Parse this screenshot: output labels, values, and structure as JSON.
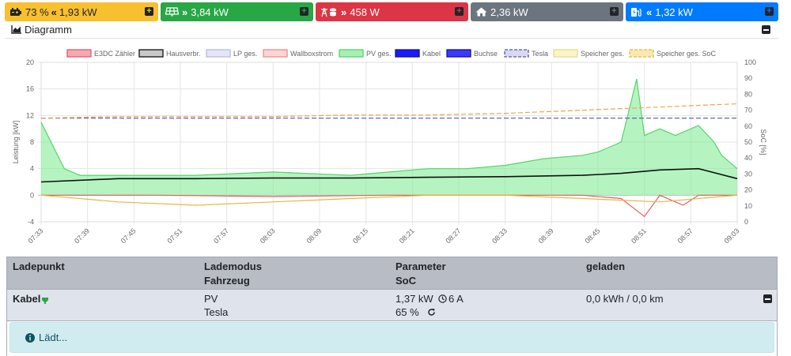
{
  "tiles": {
    "battery": {
      "soc": "73 %",
      "arrow": "«",
      "value": "1,93 kW",
      "icon": "battery-icon"
    },
    "pv": {
      "arrow": "»",
      "value": "3,84 kW",
      "icon": "solar-panel-icon"
    },
    "grid": {
      "arrow": "»",
      "value": "458 W",
      "icon": "grid-tower-icon"
    },
    "house": {
      "value": "2,36 kW",
      "icon": "home-icon"
    },
    "charge": {
      "arrow": "«",
      "value": "1,32 kW",
      "icon": "charging-station-icon"
    }
  },
  "diagram": {
    "title": "Diagramm"
  },
  "chart_data": {
    "type": "line",
    "legend": [
      "E3DC Zähler",
      "Hausverbr.",
      "LP ges.",
      "Wallboxstrom",
      "PV ges.",
      "Kabel",
      "Buchse",
      "Tesla",
      "Speicher ges.",
      "Speicher ges. SoC"
    ],
    "legend_colors": [
      "#f4a9b3",
      "#c8c8c8",
      "#e4e6f7",
      "#fbd6d6",
      "#a7f0b3",
      "#1a1aff",
      "#3b3bff",
      "#d8d8f0",
      "#fbf4c6",
      "#fbe8b0"
    ],
    "legend_borders": [
      "#e8596b",
      "#111111",
      "#b5b9ee",
      "#f28a8a",
      "#55d46b",
      "#111188",
      "#111199",
      "#5555bb",
      "#e6dc90",
      "#e8b640"
    ],
    "legend_dashed": [
      false,
      false,
      false,
      false,
      false,
      false,
      false,
      true,
      false,
      true
    ],
    "x_ticks": [
      "07:33",
      "07:39",
      "07:45",
      "07:51",
      "07:57",
      "08:03",
      "08:09",
      "08:15",
      "08:21",
      "08:27",
      "08:33",
      "08:39",
      "08:45",
      "08:51",
      "08:57",
      "09:03"
    ],
    "x_range": [
      "07:33",
      "09:03"
    ],
    "ylabel": "Leistung [kW]",
    "ylim": [
      -4,
      20
    ],
    "y_ticks": [
      -4,
      0,
      4,
      8,
      12,
      16,
      20
    ],
    "y2label": "SoC [%]",
    "y2lim": [
      0,
      100
    ],
    "y2_ticks": [
      0,
      10,
      20,
      30,
      40,
      50,
      60,
      70,
      80,
      90,
      100
    ],
    "series": [
      {
        "name": "PV ges.",
        "color": "#55d46b",
        "fill": "rgba(120,235,140,0.55)",
        "times": [
          0,
          3,
          5,
          10,
          20,
          30,
          40,
          45,
          50,
          55,
          60,
          65,
          70,
          72,
          75,
          77,
          78,
          80,
          82,
          85,
          87,
          88,
          90
        ],
        "values": [
          11,
          4,
          3,
          3,
          3,
          3.5,
          3,
          3.5,
          4,
          4,
          4.5,
          5.5,
          6,
          6.5,
          8,
          17.5,
          9,
          10,
          9,
          10.5,
          8,
          6,
          4
        ]
      },
      {
        "name": "Hausverbr.",
        "color": "#111111",
        "times": [
          0,
          10,
          20,
          30,
          40,
          50,
          60,
          70,
          75,
          80,
          85,
          90
        ],
        "values": [
          2,
          2.5,
          2.5,
          2.6,
          2.6,
          2.7,
          2.8,
          3,
          3.3,
          3.8,
          4,
          2.5
        ]
      },
      {
        "name": "E3DC Zähler",
        "color": "#e8596b",
        "times": [
          0,
          15,
          30,
          45,
          60,
          70,
          75,
          78,
          80,
          83,
          85,
          90
        ],
        "values": [
          0,
          0,
          -0.2,
          0,
          0,
          0,
          -0.5,
          -3.2,
          0,
          -1.5,
          0,
          0
        ]
      },
      {
        "name": "Speicher ges.",
        "color": "#e8b640",
        "times": [
          0,
          10,
          20,
          30,
          40,
          50,
          60,
          70,
          80,
          90
        ],
        "values": [
          0,
          -1,
          -1.5,
          -1,
          -0.5,
          0,
          0,
          -0.5,
          -1,
          0
        ]
      },
      {
        "name": "Tesla",
        "color": "#5555bb",
        "dashed": true,
        "axis": "soc",
        "times": [
          0,
          90
        ],
        "values": [
          65,
          65
        ]
      },
      {
        "name": "Speicher ges. SoC",
        "color": "#f0a24a",
        "dashed": true,
        "axis": "soc",
        "times": [
          0,
          10,
          20,
          30,
          40,
          50,
          60,
          65,
          70,
          75,
          80,
          85,
          90
        ],
        "values": [
          65,
          66,
          66,
          66,
          67,
          67,
          68,
          69,
          70,
          71,
          72,
          73,
          74
        ]
      }
    ]
  },
  "table": {
    "headers": {
      "ladepunkt": "Ladepunkt",
      "lademodus": "Lademodus",
      "fahrzeug": "Fahrzeug",
      "parameter": "Parameter",
      "soc": "SoC",
      "geladen": "geladen"
    },
    "row": {
      "ladepunkt": "Kabel",
      "modus": "PV",
      "fahrzeug": "Tesla",
      "leistung": "1,37 kW",
      "strom": "6 A",
      "soc": "65 %",
      "geladen": "0,0 kWh / 0,0 km"
    }
  },
  "alert": {
    "text": "Lädt..."
  }
}
